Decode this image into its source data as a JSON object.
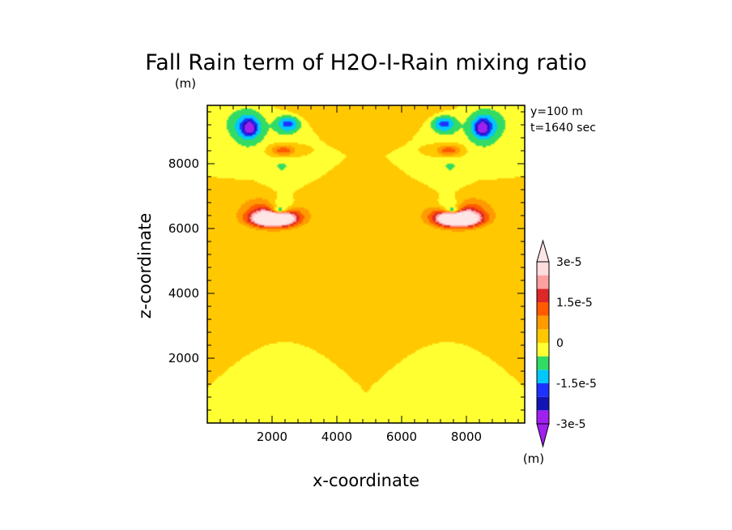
{
  "chart_data": {
    "type": "contour",
    "title": "Fall Rain term of H2O-I-Rain mixing ratio",
    "xlabel": "x-coordinate",
    "ylabel": "z-coordinate",
    "y_unit_label": "(m)",
    "colorbar_unit_label": "(m)",
    "annotations": [
      "y=100 m",
      "t=1640 sec"
    ],
    "xlim": [
      0,
      9800
    ],
    "ylim": [
      0,
      9800
    ],
    "x_ticks": [
      2000,
      4000,
      6000,
      8000
    ],
    "x_tick_labels": [
      "2000",
      "4000",
      "6000",
      "8000"
    ],
    "y_ticks": [
      2000,
      4000,
      6000,
      8000
    ],
    "y_tick_labels": [
      "2000",
      "4000",
      "6000",
      "8000"
    ],
    "background_value": 0.0,
    "colorbar": {
      "levels": [
        -3e-05,
        -2.5e-05,
        -2e-05,
        -1.5e-05,
        -1e-05,
        -5e-06,
        0,
        5e-06,
        1e-05,
        1.5e-05,
        2e-05,
        2.5e-05,
        3e-05
      ],
      "tick_labels": [
        "3e-5",
        "1.5e-5",
        "0",
        "-1.5e-5",
        "-3e-5"
      ],
      "tick_values": [
        3e-05,
        1.5e-05,
        0,
        -1.5e-05,
        -3e-05
      ],
      "colors": [
        "#a020f0",
        "#1414b4",
        "#1e32ff",
        "#00c8ff",
        "#32dc64",
        "#ffff32",
        "#ffc800",
        "#ff9b00",
        "#ff5a00",
        "#dc2828",
        "#ffa0a0",
        "#ffdcdc"
      ],
      "overflow_colors": [
        "#a020f0",
        "#ffe6e6"
      ]
    },
    "features": [
      {
        "cx": 2050,
        "cz": 6550,
        "rx": 1250,
        "rz": 650,
        "value": 8e-06
      },
      {
        "cx": 2050,
        "cz": 6500,
        "rx": 1050,
        "rz": 480,
        "value": 1.3e-05
      },
      {
        "cx": 2050,
        "cz": 6300,
        "rx": 820,
        "rz": 290,
        "value": 2.3e-05
      },
      {
        "cx": 2050,
        "cz": 6280,
        "rx": 720,
        "rz": 230,
        "value": 2.8e-05
      },
      {
        "cx": 2300,
        "cz": 6800,
        "rx": 700,
        "rz": 420,
        "value": -6e-06
      },
      {
        "cx": 2300,
        "cz": 6700,
        "rx": 520,
        "rz": 270,
        "value": -1.2e-05
      },
      {
        "cx": 2200,
        "cz": 6550,
        "rx": 300,
        "rz": 130,
        "value": -2.2e-05
      },
      {
        "cx": 1250,
        "cz": 9000,
        "rx": 720,
        "rz": 900,
        "value": -6e-06
      },
      {
        "cx": 1300,
        "cz": 9150,
        "rx": 520,
        "rz": 500,
        "value": -1.2e-05
      },
      {
        "cx": 1300,
        "cz": 9100,
        "rx": 200,
        "rz": 220,
        "value": -2.2e-05
      },
      {
        "cx": 2500,
        "cz": 9200,
        "rx": 600,
        "rz": 450,
        "value": -6e-06
      },
      {
        "cx": 2500,
        "cz": 9250,
        "rx": 450,
        "rz": 300,
        "value": -1.2e-05
      },
      {
        "cx": 2300,
        "cz": 8100,
        "rx": 650,
        "rz": 900,
        "value": -6e-06
      },
      {
        "cx": 2300,
        "cz": 8400,
        "rx": 600,
        "rz": 350,
        "value": 6e-06
      },
      {
        "cx": 2350,
        "cz": 8400,
        "rx": 500,
        "rz": 220,
        "value": 1.2e-05
      },
      {
        "cx": 3000,
        "cz": 9600,
        "rx": 900,
        "rz": 500,
        "value": 4e-06
      },
      {
        "cx": 700,
        "cz": 9300,
        "rx": 900,
        "rz": 700,
        "value": -3e-06
      },
      {
        "cx": 2900,
        "cz": 5500,
        "rx": 500,
        "rz": 220,
        "value": 2.5e-06
      },
      {
        "cx": 3600,
        "cz": 4250,
        "rx": 300,
        "rz": 60,
        "value": 2.5e-06
      }
    ],
    "symmetry": "mirror about x=4900"
  }
}
